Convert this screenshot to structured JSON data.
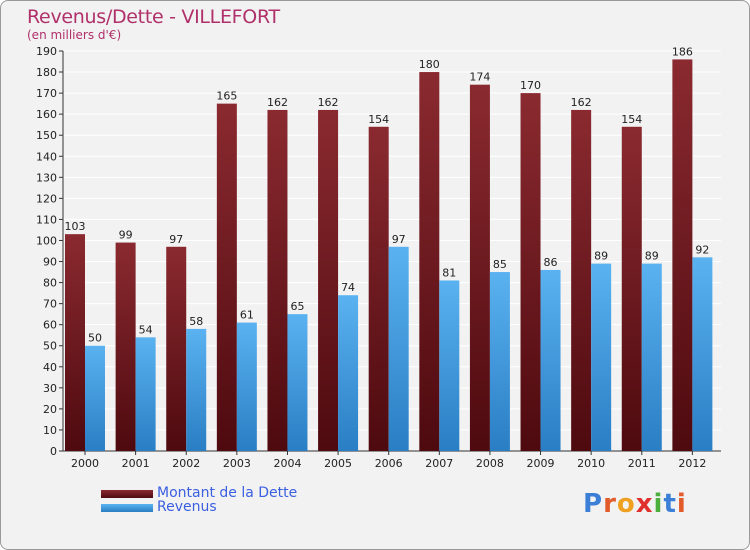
{
  "header": {
    "title": "Revenus/Dette - VILLEFORT",
    "subtitle": "(en milliers d'€)"
  },
  "colors": {
    "debt": "#7a1f24",
    "debt_dark": "#4e0a0f",
    "revenue": "#4aa3e8",
    "revenue_dark": "#2a7ec4",
    "grid": "#ffffff",
    "background": "#f2f2f2"
  },
  "chart_data": {
    "type": "bar",
    "title": "Revenus/Dette - VILLEFORT",
    "ylabel": "(en milliers d'€)",
    "xlabel": "",
    "categories": [
      "2000",
      "2001",
      "2002",
      "2003",
      "2004",
      "2005",
      "2006",
      "2007",
      "2008",
      "2009",
      "2010",
      "2011",
      "2012"
    ],
    "series": [
      {
        "name": "Montant de la Dette",
        "values": [
          103,
          99,
          97,
          165,
          162,
          162,
          154,
          180,
          174,
          170,
          162,
          154,
          186
        ]
      },
      {
        "name": "Revenus",
        "values": [
          50,
          54,
          58,
          61,
          65,
          74,
          97,
          81,
          85,
          86,
          89,
          89,
          92
        ]
      }
    ],
    "ylim": [
      0,
      190
    ],
    "ytick_step": 10,
    "grid": true,
    "legend_position": "bottom-left"
  },
  "legend": {
    "debt_label": "Montant de la Dette",
    "revenue_label": "Revenus"
  },
  "logo": {
    "letters": [
      "P",
      "r",
      "o",
      "x",
      "i",
      "t",
      "i"
    ],
    "letter_colors": [
      "#3b7fd6",
      "#e25b2a",
      "#f0a020",
      "#e0302c",
      "#4cae3c",
      "#3b7fd6",
      "#e25b2a"
    ]
  }
}
